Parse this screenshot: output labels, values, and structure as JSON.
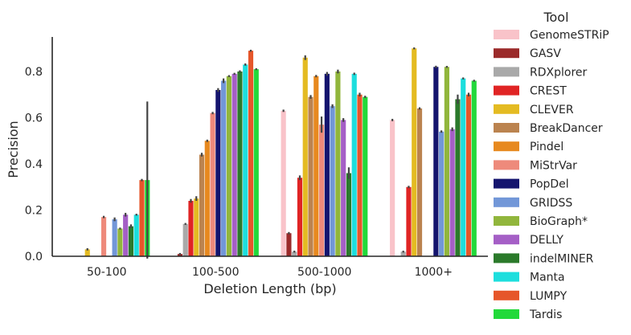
{
  "chart_data": {
    "type": "bar",
    "xlabel": "Deletion Length (bp)",
    "ylabel": "Precision",
    "ylim": [
      0,
      0.95
    ],
    "yticks": [
      "0.0",
      "0.2",
      "0.4",
      "0.6",
      "0.8"
    ],
    "categories": [
      "50-100",
      "100-500",
      "500-1000",
      "1000+"
    ],
    "legend": {
      "title": "Tool",
      "placement": "right"
    },
    "grid": false,
    "series": [
      {
        "name": "GenomeSTRiP",
        "color": "#f9c3c9",
        "values": [
          0,
          0,
          0.63,
          0.59
        ],
        "err": [
          0,
          0,
          0.005,
          0.005
        ]
      },
      {
        "name": "GASV",
        "color": "#9b2a2a",
        "values": [
          0,
          0.01,
          0.1,
          0
        ],
        "err": [
          0,
          0,
          0.005,
          0
        ]
      },
      {
        "name": "RDXplorer",
        "color": "#a9a9a9",
        "values": [
          0,
          0.14,
          0.02,
          0.02
        ],
        "err": [
          0,
          0,
          0,
          0
        ]
      },
      {
        "name": "CREST",
        "color": "#e02424",
        "values": [
          0,
          0.24,
          0.34,
          0.3
        ],
        "err": [
          0,
          0.008,
          0.01,
          0.005
        ]
      },
      {
        "name": "CLEVER",
        "color": "#e4bb22",
        "values": [
          0.03,
          0.25,
          0.86,
          0.9
        ],
        "err": [
          0.005,
          0.01,
          0.01,
          0
        ]
      },
      {
        "name": "BreakDancer",
        "color": "#bb834f",
        "values": [
          0,
          0.44,
          0.69,
          0.64
        ],
        "err": [
          0,
          0.008,
          0.008,
          0.005
        ]
      },
      {
        "name": "Pindel",
        "color": "#e7891f",
        "values": [
          0,
          0.5,
          0.78,
          0
        ],
        "err": [
          0,
          0.005,
          0.005,
          0
        ]
      },
      {
        "name": "MiStrVar",
        "color": "#ee8a7b",
        "values": [
          0.17,
          0.62,
          0.57,
          0
        ],
        "err": [
          0.005,
          0.005,
          0.035,
          0
        ]
      },
      {
        "name": "PopDel",
        "color": "#14146e",
        "values": [
          0,
          0.72,
          0.79,
          0.82
        ],
        "err": [
          0,
          0.008,
          0.008,
          0.005
        ]
      },
      {
        "name": "GRIDSS",
        "color": "#7297d8",
        "values": [
          0.16,
          0.76,
          0.65,
          0.54
        ],
        "err": [
          0.008,
          0.01,
          0.008,
          0.005
        ]
      },
      {
        "name": "BioGraph*",
        "color": "#91b63c",
        "values": [
          0.12,
          0.78,
          0.8,
          0.82
        ],
        "err": [
          0,
          0,
          0.008,
          0
        ]
      },
      {
        "name": "DELLY",
        "color": "#a55fc6",
        "values": [
          0.18,
          0.79,
          0.59,
          0.55
        ],
        "err": [
          0.008,
          0,
          0.008,
          0.008
        ]
      },
      {
        "name": "indelMINER",
        "color": "#2b7a2b",
        "values": [
          0.13,
          0.8,
          0.36,
          0.68
        ],
        "err": [
          0.008,
          0.005,
          0.025,
          0.02
        ]
      },
      {
        "name": "Manta",
        "color": "#1ddedd",
        "values": [
          0.18,
          0.83,
          0.79,
          0.77
        ],
        "err": [
          0,
          0.005,
          0.005,
          0
        ]
      },
      {
        "name": "LUMPY",
        "color": "#e6562a",
        "values": [
          0.33,
          0.89,
          0.7,
          0.7
        ],
        "err": [
          0.005,
          0,
          0.008,
          0.008
        ]
      },
      {
        "name": "Tardis",
        "color": "#22d93a",
        "values": [
          0.33,
          0.81,
          0.69,
          0.76
        ],
        "err": [
          0.34,
          0,
          0.005,
          0
        ]
      }
    ]
  }
}
